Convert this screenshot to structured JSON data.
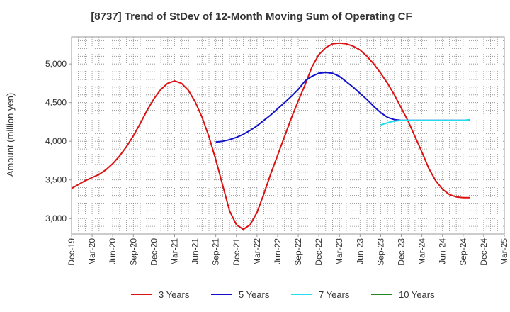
{
  "chart_data": {
    "type": "line",
    "title": "[8737]  Trend of StDev of 12-Month Moving Sum of Operating CF",
    "xlabel": "",
    "ylabel": "Amount (million yen)",
    "ylim": [
      2800,
      5350
    ],
    "yticks": [
      3000,
      3500,
      4000,
      4500,
      5000
    ],
    "ytick_labels": [
      "3,000",
      "3,500",
      "4,000",
      "4,500",
      "5,000"
    ],
    "grid": true,
    "legend_position": "bottom",
    "x_start": "2019-12",
    "x_end": "2025-03",
    "xtick_labels": [
      "Dec-19",
      "Mar-20",
      "Jun-20",
      "Sep-20",
      "Dec-20",
      "Mar-21",
      "Jun-21",
      "Sep-21",
      "Dec-21",
      "Mar-22",
      "Jun-22",
      "Sep-22",
      "Dec-22",
      "Mar-23",
      "Jun-23",
      "Sep-23",
      "Dec-23",
      "Mar-24",
      "Jun-24",
      "Sep-24",
      "Dec-24",
      "Mar-25"
    ],
    "series": [
      {
        "name": "3 Years",
        "color": "#dd1111",
        "start_month_index": 0,
        "values": [
          3390,
          3440,
          3490,
          3530,
          3570,
          3630,
          3710,
          3810,
          3930,
          4070,
          4230,
          4400,
          4550,
          4670,
          4750,
          4780,
          4750,
          4660,
          4510,
          4310,
          4060,
          3760,
          3430,
          3100,
          2920,
          2860,
          2920,
          3080,
          3320,
          3580,
          3820,
          4060,
          4300,
          4520,
          4730,
          4960,
          5120,
          5210,
          5260,
          5270,
          5260,
          5230,
          5180,
          5100,
          5000,
          4880,
          4750,
          4600,
          4430,
          4260,
          4060,
          3860,
          3650,
          3490,
          3380,
          3310,
          3280,
          3270,
          3270
        ]
      },
      {
        "name": "5 Years",
        "color": "#1111cc",
        "start_month_index": 21,
        "values": [
          3990,
          4000,
          4020,
          4050,
          4090,
          4140,
          4200,
          4270,
          4340,
          4420,
          4500,
          4580,
          4670,
          4780,
          4840,
          4880,
          4890,
          4880,
          4840,
          4770,
          4700,
          4620,
          4540,
          4450,
          4370,
          4310,
          4280,
          4270,
          4270,
          4270,
          4270,
          4270,
          4270,
          4270,
          4270,
          4270,
          4270,
          4270
        ]
      },
      {
        "name": "7 Years",
        "color": "#22ddee",
        "start_month_index": 45,
        "values": [
          4210,
          4240,
          4260,
          4270,
          4270,
          4270,
          4270,
          4270,
          4270,
          4270,
          4270,
          4270,
          4270,
          4280
        ]
      },
      {
        "name": "10 Years",
        "color": "#228822",
        "start_month_index": 0,
        "values": []
      }
    ]
  }
}
